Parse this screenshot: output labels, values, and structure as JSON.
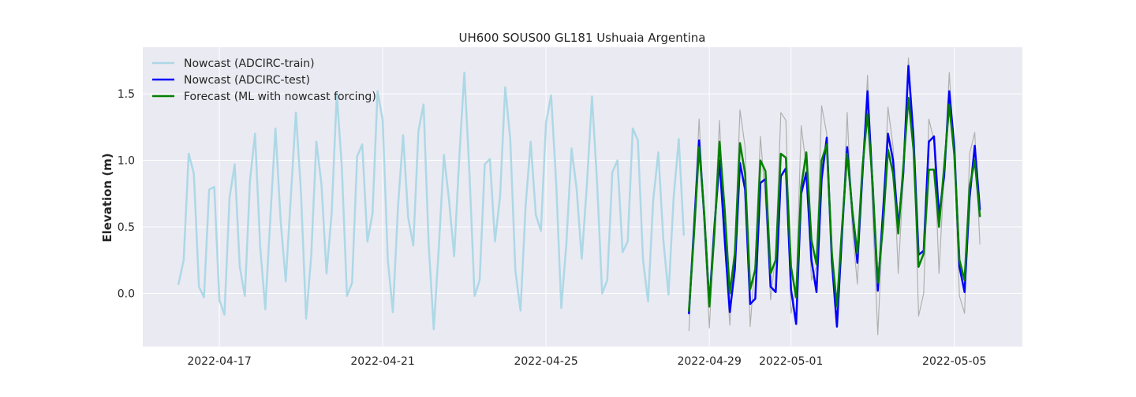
{
  "chart_data": {
    "type": "line",
    "title": "UH600 SOUS00 GL181 Ushuaia Argentina",
    "xlabel": "",
    "ylabel": "Elevation (m)",
    "x_range": [
      "2022-04-15T03:00",
      "2022-05-06T16:00"
    ],
    "ylim": [
      -0.4,
      1.85
    ],
    "x_ticks": [
      "2022-04-17",
      "2022-04-21",
      "2022-04-25",
      "2022-04-29",
      "2022-05-01",
      "2022-05-05"
    ],
    "y_ticks": [
      0.0,
      0.5,
      1.0,
      1.5
    ],
    "y_tick_labels": [
      "0.0",
      "0.5",
      "1.0",
      "1.5"
    ],
    "grid": true,
    "legend_position": "top-left",
    "colors": {
      "background": "#eaeaf2",
      "train": "#add8e6",
      "test": "#0000ff",
      "forecast": "#008000",
      "reference": "#b0b0b0"
    },
    "series": [
      {
        "name": "Nowcast (ADCIRC-train)",
        "color": "#add8e6",
        "x": [
          "2022-04-16T00:00",
          "2022-04-16T03:00",
          "2022-04-16T06:00",
          "2022-04-16T09:00",
          "2022-04-16T12:00",
          "2022-04-16T15:00",
          "2022-04-16T18:00",
          "2022-04-16T21:00",
          "2022-04-17T00:00",
          "2022-04-17T03:00",
          "2022-04-17T06:00",
          "2022-04-17T09:00",
          "2022-04-17T12:00",
          "2022-04-17T15:00",
          "2022-04-17T18:00",
          "2022-04-17T21:00",
          "2022-04-18T00:00",
          "2022-04-18T03:00",
          "2022-04-18T06:00",
          "2022-04-18T09:00",
          "2022-04-18T12:00",
          "2022-04-18T15:00",
          "2022-04-18T18:00",
          "2022-04-18T21:00",
          "2022-04-19T00:00",
          "2022-04-19T03:00",
          "2022-04-19T06:00",
          "2022-04-19T09:00",
          "2022-04-19T12:00",
          "2022-04-19T15:00",
          "2022-04-19T18:00",
          "2022-04-19T21:00",
          "2022-04-20T00:00",
          "2022-04-20T03:00",
          "2022-04-20T06:00",
          "2022-04-20T09:00",
          "2022-04-20T12:00",
          "2022-04-20T15:00",
          "2022-04-20T18:00",
          "2022-04-20T21:00",
          "2022-04-21T00:00",
          "2022-04-21T03:00",
          "2022-04-21T06:00",
          "2022-04-21T09:00",
          "2022-04-21T12:00",
          "2022-04-21T15:00",
          "2022-04-21T18:00",
          "2022-04-21T21:00",
          "2022-04-22T00:00",
          "2022-04-22T03:00",
          "2022-04-22T06:00",
          "2022-04-22T09:00",
          "2022-04-22T12:00",
          "2022-04-22T15:00",
          "2022-04-22T18:00",
          "2022-04-22T21:00",
          "2022-04-23T00:00",
          "2022-04-23T03:00",
          "2022-04-23T06:00",
          "2022-04-23T09:00",
          "2022-04-23T12:00",
          "2022-04-23T15:00",
          "2022-04-23T18:00",
          "2022-04-23T21:00",
          "2022-04-24T00:00",
          "2022-04-24T03:00",
          "2022-04-24T06:00",
          "2022-04-24T09:00",
          "2022-04-24T12:00",
          "2022-04-24T15:00",
          "2022-04-24T18:00",
          "2022-04-24T21:00",
          "2022-04-25T00:00",
          "2022-04-25T03:00",
          "2022-04-25T06:00",
          "2022-04-25T09:00",
          "2022-04-25T12:00",
          "2022-04-25T15:00",
          "2022-04-25T18:00",
          "2022-04-25T21:00",
          "2022-04-26T00:00",
          "2022-04-26T03:00",
          "2022-04-26T06:00",
          "2022-04-26T09:00",
          "2022-04-26T12:00",
          "2022-04-26T15:00",
          "2022-04-26T18:00",
          "2022-04-26T21:00",
          "2022-04-27T00:00",
          "2022-04-27T03:00",
          "2022-04-27T06:00",
          "2022-04-27T09:00",
          "2022-04-27T12:00",
          "2022-04-27T15:00",
          "2022-04-27T18:00",
          "2022-04-27T21:00",
          "2022-04-28T00:00",
          "2022-04-28T03:00",
          "2022-04-28T06:00",
          "2022-04-28T09:00"
        ],
        "values": [
          0.07,
          0.25,
          1.05,
          0.9,
          0.05,
          -0.03,
          0.78,
          0.8,
          -0.05,
          -0.16,
          0.72,
          0.97,
          0.2,
          -0.02,
          0.85,
          1.2,
          0.35,
          -0.12,
          0.58,
          1.24,
          0.55,
          0.09,
          0.72,
          1.36,
          0.75,
          -0.19,
          0.28,
          1.14,
          0.82,
          0.15,
          0.6,
          1.5,
          0.95,
          -0.02,
          0.08,
          1.03,
          1.12,
          0.39,
          0.6,
          1.52,
          1.3,
          0.25,
          -0.14,
          0.65,
          1.19,
          0.57,
          0.36,
          1.22,
          1.42,
          0.38,
          -0.27,
          0.35,
          1.04,
          0.7,
          0.28,
          1.01,
          1.66,
          0.9,
          -0.02,
          0.1,
          0.97,
          1.01,
          0.39,
          0.73,
          1.55,
          1.16,
          0.17,
          -0.13,
          0.66,
          1.14,
          0.59,
          0.47,
          1.28,
          1.49,
          0.82,
          -0.11,
          0.38,
          1.09,
          0.78,
          0.26,
          0.81,
          1.48,
          0.84,
          0.0,
          0.1,
          0.91,
          1.0,
          0.31,
          0.39,
          1.24,
          1.15,
          0.25,
          -0.06,
          0.7,
          1.06,
          0.4,
          -0.01,
          0.72,
          1.16,
          0.44
        ]
      },
      {
        "name": "Nowcast (ADCIRC-test)",
        "color": "#0000ff",
        "x": [
          "2022-04-28T12:00",
          "2022-04-28T15:00",
          "2022-04-28T18:00",
          "2022-04-28T21:00",
          "2022-04-29T00:00",
          "2022-04-29T03:00",
          "2022-04-29T06:00",
          "2022-04-29T09:00",
          "2022-04-29T12:00",
          "2022-04-29T15:00",
          "2022-04-29T18:00",
          "2022-04-29T21:00",
          "2022-04-30T00:00",
          "2022-04-30T03:00",
          "2022-04-30T06:00",
          "2022-04-30T09:00",
          "2022-04-30T12:00",
          "2022-04-30T15:00",
          "2022-04-30T18:00",
          "2022-04-30T21:00",
          "2022-05-01T00:00",
          "2022-05-01T03:00",
          "2022-05-01T06:00",
          "2022-05-01T09:00",
          "2022-05-01T12:00",
          "2022-05-01T15:00",
          "2022-05-01T18:00",
          "2022-05-01T21:00",
          "2022-05-02T00:00",
          "2022-05-02T03:00",
          "2022-05-02T06:00",
          "2022-05-02T09:00",
          "2022-05-02T12:00",
          "2022-05-02T15:00",
          "2022-05-02T18:00",
          "2022-05-02T21:00",
          "2022-05-03T00:00",
          "2022-05-03T03:00",
          "2022-05-03T06:00",
          "2022-05-03T09:00",
          "2022-05-03T12:00",
          "2022-05-03T15:00",
          "2022-05-03T18:00",
          "2022-05-03T21:00",
          "2022-05-04T00:00",
          "2022-05-04T03:00",
          "2022-05-04T06:00",
          "2022-05-04T09:00",
          "2022-05-04T12:00",
          "2022-05-04T15:00",
          "2022-05-04T18:00",
          "2022-05-04T21:00",
          "2022-05-05T00:00",
          "2022-05-05T03:00",
          "2022-05-05T06:00",
          "2022-05-05T09:00",
          "2022-05-05T12:00",
          "2022-05-05T15:00"
        ],
        "values": [
          -0.15,
          0.5,
          1.15,
          0.58,
          -0.08,
          0.5,
          1.0,
          0.41,
          -0.14,
          0.18,
          0.98,
          0.78,
          -0.08,
          -0.04,
          0.83,
          0.86,
          0.05,
          0.01,
          0.88,
          0.94,
          0.03,
          -0.23,
          0.75,
          0.91,
          0.25,
          0.01,
          0.86,
          1.17,
          0.24,
          -0.25,
          0.45,
          1.1,
          0.62,
          0.23,
          0.9,
          1.52,
          0.8,
          0.02,
          0.6,
          1.2,
          1.0,
          0.5,
          0.9,
          1.71,
          1.17,
          0.29,
          0.32,
          1.14,
          1.18,
          0.58,
          0.88,
          1.52,
          1.1,
          0.2,
          0.01,
          0.72,
          1.11,
          0.63
        ]
      },
      {
        "name": "Forecast (ML with nowcast forcing)",
        "color": "#008000",
        "x": [
          "2022-04-28T12:00",
          "2022-04-28T15:00",
          "2022-04-28T18:00",
          "2022-04-28T21:00",
          "2022-04-29T00:00",
          "2022-04-29T03:00",
          "2022-04-29T06:00",
          "2022-04-29T09:00",
          "2022-04-29T12:00",
          "2022-04-29T15:00",
          "2022-04-29T18:00",
          "2022-04-29T21:00",
          "2022-04-30T00:00",
          "2022-04-30T03:00",
          "2022-04-30T06:00",
          "2022-04-30T09:00",
          "2022-04-30T12:00",
          "2022-04-30T15:00",
          "2022-04-30T18:00",
          "2022-04-30T21:00",
          "2022-05-01T00:00",
          "2022-05-01T03:00",
          "2022-05-01T06:00",
          "2022-05-01T09:00",
          "2022-05-01T12:00",
          "2022-05-01T15:00",
          "2022-05-01T18:00",
          "2022-05-01T21:00",
          "2022-05-02T00:00",
          "2022-05-02T03:00",
          "2022-05-02T06:00",
          "2022-05-02T09:00",
          "2022-05-02T12:00",
          "2022-05-02T15:00",
          "2022-05-02T18:00",
          "2022-05-02T21:00",
          "2022-05-03T00:00",
          "2022-05-03T03:00",
          "2022-05-03T06:00",
          "2022-05-03T09:00",
          "2022-05-03T12:00",
          "2022-05-03T15:00",
          "2022-05-03T18:00",
          "2022-05-03T21:00",
          "2022-05-04T00:00",
          "2022-05-04T03:00",
          "2022-05-04T06:00",
          "2022-05-04T09:00",
          "2022-05-04T12:00",
          "2022-05-04T15:00",
          "2022-05-04T18:00",
          "2022-05-04T21:00",
          "2022-05-05T00:00",
          "2022-05-05T03:00",
          "2022-05-05T06:00",
          "2022-05-05T09:00",
          "2022-05-05T12:00",
          "2022-05-05T15:00"
        ],
        "values": [
          -0.13,
          0.45,
          1.1,
          0.6,
          -0.1,
          0.45,
          1.14,
          0.63,
          0.0,
          0.3,
          1.13,
          0.9,
          0.03,
          0.18,
          1.0,
          0.92,
          0.15,
          0.25,
          1.05,
          1.02,
          0.2,
          -0.03,
          0.8,
          1.06,
          0.4,
          0.22,
          1.0,
          1.12,
          0.3,
          -0.1,
          0.5,
          1.05,
          0.63,
          0.3,
          0.95,
          1.35,
          0.82,
          0.08,
          0.5,
          1.08,
          0.9,
          0.45,
          0.95,
          1.47,
          1.08,
          0.2,
          0.3,
          0.93,
          0.93,
          0.5,
          0.95,
          1.42,
          1.04,
          0.25,
          0.1,
          0.8,
          1.0,
          0.58
        ]
      },
      {
        "color": "#b0b0b0",
        "x": [
          "2022-04-28T12:00",
          "2022-04-28T15:00",
          "2022-04-28T18:00",
          "2022-04-28T21:00",
          "2022-04-29T00:00",
          "2022-04-29T03:00",
          "2022-04-29T06:00",
          "2022-04-29T09:00",
          "2022-04-29T12:00",
          "2022-04-29T15:00",
          "2022-04-29T18:00",
          "2022-04-29T21:00",
          "2022-04-30T00:00",
          "2022-04-30T03:00",
          "2022-04-30T06:00",
          "2022-04-30T09:00",
          "2022-04-30T12:00",
          "2022-04-30T15:00",
          "2022-04-30T18:00",
          "2022-04-30T21:00",
          "2022-05-01T00:00",
          "2022-05-01T03:00",
          "2022-05-01T06:00",
          "2022-05-01T09:00",
          "2022-05-01T12:00",
          "2022-05-01T15:00",
          "2022-05-01T18:00",
          "2022-05-01T21:00",
          "2022-05-02T00:00",
          "2022-05-02T03:00",
          "2022-05-02T06:00",
          "2022-05-02T09:00",
          "2022-05-02T12:00",
          "2022-05-02T15:00",
          "2022-05-02T18:00",
          "2022-05-02T21:00",
          "2022-05-03T00:00",
          "2022-05-03T03:00",
          "2022-05-03T06:00",
          "2022-05-03T09:00",
          "2022-05-03T12:00",
          "2022-05-03T15:00",
          "2022-05-03T18:00",
          "2022-05-03T21:00",
          "2022-05-04T00:00",
          "2022-05-04T03:00",
          "2022-05-04T06:00",
          "2022-05-04T09:00",
          "2022-05-04T12:00",
          "2022-05-04T15:00",
          "2022-05-04T18:00",
          "2022-05-04T21:00",
          "2022-05-05T00:00",
          "2022-05-05T03:00",
          "2022-05-05T06:00",
          "2022-05-05T09:00",
          "2022-05-05T12:00",
          "2022-05-05T15:00"
        ],
        "values": [
          -0.28,
          0.55,
          1.31,
          0.5,
          -0.26,
          0.52,
          1.3,
          0.35,
          -0.24,
          0.35,
          1.38,
          1.1,
          -0.25,
          0.25,
          1.18,
          0.7,
          -0.05,
          0.3,
          1.36,
          1.3,
          -0.15,
          0.05,
          1.26,
          0.95,
          0.1,
          0.2,
          1.41,
          1.2,
          0.25,
          -0.2,
          0.4,
          1.36,
          0.5,
          0.07,
          0.9,
          1.64,
          0.6,
          -0.31,
          0.55,
          1.4,
          1.1,
          0.15,
          0.85,
          1.77,
          1.2,
          -0.17,
          0.0,
          1.31,
          1.15,
          0.15,
          0.9,
          1.66,
          1.0,
          -0.02,
          -0.15,
          1.05,
          1.21,
          0.37
        ]
      }
    ]
  }
}
